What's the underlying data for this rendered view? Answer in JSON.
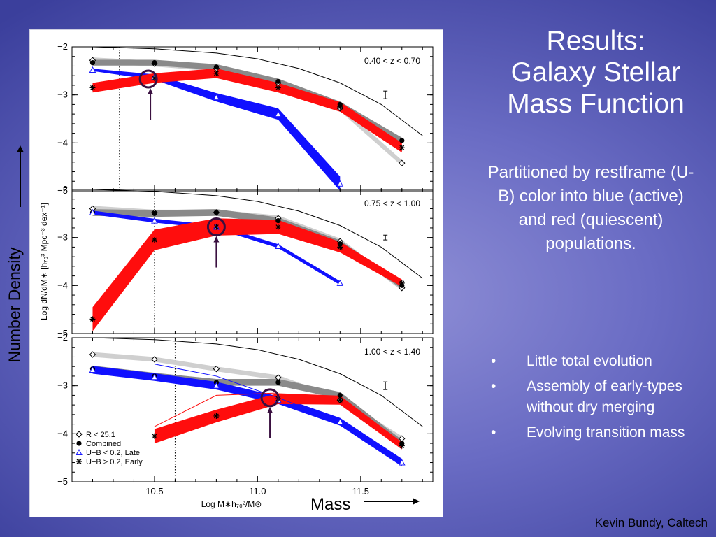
{
  "slide": {
    "title_lines": [
      "Results:",
      "Galaxy Stellar",
      "Mass Function"
    ],
    "subtitle": "Partitioned by restframe (U-B) color into blue (active) and red (quiescent) populations.",
    "bullets": [
      "Little total evolution",
      "Assembly of early-types without dry merging",
      "Evolving transition mass"
    ],
    "bullet_glyph": "•",
    "credit": "Kevin Bundy, Caltech",
    "y_annotation": "Number Density",
    "x_annotation": "Mass"
  },
  "chart_data": {
    "type": "line",
    "xlabel": "Log M∗h₇₀²/M⊙",
    "ylabel": "Log dN/dM∗ [h₇₀³ Mpc⁻³ dex⁻¹]",
    "xlim": [
      10.1,
      11.85
    ],
    "x_ticks": [
      "10.5",
      "11.0",
      "11.5"
    ],
    "ylim": [
      -5,
      -2
    ],
    "y_ticks": [
      "−2",
      "−3",
      "−4",
      "−5"
    ],
    "legend": [
      {
        "symbol": "◇",
        "label": "R < 25.1",
        "color": "#000000"
      },
      {
        "symbol": "●",
        "label": "Combined",
        "color": "#000000"
      },
      {
        "symbol": "△",
        "label": "U−B < 0.2, Late",
        "color": "#1a1aff"
      },
      {
        "symbol": "✳",
        "label": "U−B > 0.2, Early",
        "color": "#ff0000"
      }
    ],
    "legend_position": "bottom-left",
    "colors": {
      "blue": "#1010ff",
      "red": "#ff0d0d",
      "combined": "#8a8a8a",
      "rlimited": "#cfcfcf",
      "arrow": "#3a1040"
    },
    "panels": [
      {
        "label": "0.40 < z < 0.70",
        "completeness_x": 10.33,
        "model_curve": {
          "x": [
            10.2,
            10.5,
            10.8,
            11.0,
            11.2,
            11.4,
            11.6,
            11.8
          ],
          "y": [
            -2.0,
            -2.04,
            -2.13,
            -2.25,
            -2.45,
            -2.75,
            -3.2,
            -3.85
          ]
        },
        "series": [
          {
            "name": "R < 25.1",
            "x": [
              10.2,
              10.5,
              10.8,
              11.1,
              11.4,
              11.7
            ],
            "y": [
              -2.28,
              -2.35,
              -2.45,
              -2.75,
              -3.28,
              -4.42
            ],
            "width": 0.12
          },
          {
            "name": "Combined",
            "x": [
              10.2,
              10.5,
              10.8,
              11.1,
              11.4,
              11.7
            ],
            "y": [
              -2.33,
              -2.33,
              -2.42,
              -2.72,
              -3.2,
              -3.95
            ],
            "width": 0.12
          },
          {
            "name": "U−B < 0.2, Late",
            "x": [
              10.2,
              10.5,
              10.8,
              11.1,
              11.4
            ],
            "y": [
              -2.48,
              -2.63,
              -3.05,
              -3.4,
              -4.85
            ],
            "width_start": 0.05,
            "width_end": 0.3
          },
          {
            "name": "U−B > 0.2, Early",
            "x": [
              10.2,
              10.5,
              10.8,
              11.1,
              11.4,
              11.7
            ],
            "y": [
              -2.85,
              -2.65,
              -2.55,
              -2.85,
              -3.25,
              -4.1
            ],
            "width": 0.2
          }
        ],
        "transition_mass": -2.67,
        "transition_x": 10.47,
        "error_bar": {
          "x": 11.62,
          "y": -3.0,
          "half": 0.08
        }
      },
      {
        "label": "0.75 < z < 1.00",
        "completeness_x": 10.5,
        "model_curve": {
          "x": [
            10.2,
            10.5,
            10.8,
            11.0,
            11.2,
            11.4,
            11.6,
            11.8
          ],
          "y": [
            -2.0,
            -2.04,
            -2.13,
            -2.25,
            -2.45,
            -2.75,
            -3.2,
            -3.85
          ]
        },
        "series": [
          {
            "name": "R < 25.1",
            "x": [
              10.2,
              10.5,
              10.8,
              11.1,
              11.4,
              11.7
            ],
            "y": [
              -2.4,
              -2.48,
              -2.48,
              -2.6,
              -3.08,
              -4.05
            ],
            "width": 0.12
          },
          {
            "name": "Combined",
            "x": [
              10.2,
              10.5,
              10.8,
              11.1,
              11.4,
              11.7
            ],
            "y": [
              -2.48,
              -2.5,
              -2.48,
              -2.65,
              -3.13,
              -4.0
            ],
            "width": 0.14
          },
          {
            "name": "U−B < 0.2, Late",
            "x": [
              10.2,
              10.5,
              10.8,
              11.1,
              11.4
            ],
            "y": [
              -2.48,
              -2.65,
              -2.78,
              -3.18,
              -3.95
            ],
            "width": 0.08
          },
          {
            "name": "U−B > 0.2, Early",
            "x": [
              10.2,
              10.5,
              10.8,
              11.1,
              11.4,
              11.7
            ],
            "y": [
              -4.7,
              -3.05,
              -2.78,
              -2.78,
              -3.2,
              -3.95
            ],
            "width_start": 0.5,
            "width_end": 0.15
          }
        ],
        "transition_mass": -2.78,
        "transition_x": 10.8,
        "error_bar": {
          "x": 11.62,
          "y": -3.0,
          "half": 0.05
        }
      },
      {
        "label": "1.00 < z < 1.40",
        "completeness_x": 10.6,
        "model_curve": {
          "x": [
            10.2,
            10.5,
            10.8,
            11.0,
            11.2,
            11.4,
            11.6,
            11.8
          ],
          "y": [
            -2.0,
            -2.04,
            -2.13,
            -2.25,
            -2.45,
            -2.75,
            -3.2,
            -3.85
          ]
        },
        "series": [
          {
            "name": "R < 25.1",
            "x": [
              10.2,
              10.5,
              10.8,
              11.1,
              11.4,
              11.7
            ],
            "y": [
              -2.35,
              -2.45,
              -2.65,
              -2.83,
              -3.3,
              -4.1
            ],
            "width": 0.1
          },
          {
            "name": "Combined",
            "x": [
              10.2,
              10.5,
              10.8,
              11.1,
              11.4,
              11.7
            ],
            "y": [
              -2.65,
              -2.8,
              -2.93,
              -2.93,
              -3.2,
              -4.2
            ],
            "width": 0.14
          },
          {
            "name": "U−B < 0.2, Late",
            "x": [
              10.2,
              10.5,
              10.8,
              11.1,
              11.4,
              11.7
            ],
            "y": [
              -2.67,
              -2.82,
              -3.0,
              -3.3,
              -3.75,
              -4.6
            ],
            "width": 0.16
          },
          {
            "name": "U−B > 0.2, Early",
            "x": [
              10.5,
              10.8,
              11.1,
              11.4,
              11.7
            ],
            "y": [
              -4.05,
              -3.63,
              -3.27,
              -3.3,
              -4.25
            ],
            "width_start": 0.3,
            "width_end": 0.15
          }
        ],
        "thin_lines": [
          {
            "color": "#1010ff",
            "x": [
              10.5,
              10.8,
              11.1,
              11.4
            ],
            "y": [
              -2.55,
              -2.8,
              -3.25,
              -3.75
            ]
          },
          {
            "color": "#ff0d0d",
            "x": [
              10.5,
              10.8,
              11.1
            ],
            "y": [
              -3.85,
              -3.2,
              -3.15
            ]
          }
        ],
        "transition_mass": -3.25,
        "transition_x": 11.06,
        "error_bar": {
          "x": 11.62,
          "y": -3.0,
          "half": 0.08
        }
      }
    ]
  }
}
